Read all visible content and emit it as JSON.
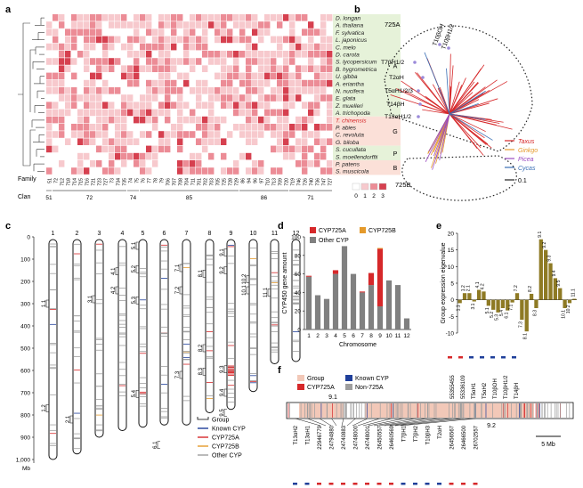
{
  "panel_labels": {
    "a": "a",
    "b": "b",
    "c": "c",
    "d": "d",
    "e": "e",
    "f": "f"
  },
  "heatmap": {
    "species": [
      "D. longan",
      "A. thaliana",
      "F. sylvatica",
      "L. japonicus",
      "C. melo",
      "D. carota",
      "S. lycopersicum",
      "B. hygrometrica",
      "U. gibba",
      "A. eriantha",
      "N. nucifera",
      "E. glata",
      "Z. muelleri",
      "A. trichopoda",
      "T. chinensis",
      "P. abies",
      "C. revoluta",
      "G. biloba",
      "S. cucullata",
      "S. moellendorffii",
      "P. patens",
      "S. muscicola"
    ],
    "highlight_species_index": 14,
    "groups": [
      {
        "label": "A",
        "rows": [
          0,
          13
        ],
        "color": "#e6f2d9"
      },
      {
        "label": "G",
        "rows": [
          14,
          17
        ],
        "color": "#fbe0d8"
      },
      {
        "label": "P",
        "rows": [
          18,
          19
        ],
        "color": "#e6f2d9"
      },
      {
        "label": "B",
        "rows": [
          20,
          21
        ],
        "color": "#fbe0d8"
      }
    ],
    "family_label": "Family",
    "clan_label": "Clan",
    "families": [
      "51",
      "72",
      "712",
      "718",
      "714",
      "715",
      "716",
      "721",
      "723",
      "727",
      "73",
      "734",
      "735",
      "74",
      "75",
      "76",
      "77",
      "78",
      "79",
      "706",
      "707",
      "708",
      "704",
      "711",
      "701",
      "702",
      "703",
      "705",
      "725",
      "728",
      "729",
      "86",
      "94",
      "96",
      "97",
      "710",
      "713",
      "709",
      "720",
      "719",
      "746",
      "726",
      "740",
      "736",
      "747",
      "727"
    ],
    "clans": [
      {
        "label": "51",
        "start": 0,
        "end": 0
      },
      {
        "label": "72",
        "start": 1,
        "end": 12
      },
      {
        "label": "74",
        "start": 13,
        "end": 14
      },
      {
        "label": "85",
        "start": 15,
        "end": 30
      },
      {
        "label": "86",
        "start": 31,
        "end": 38
      },
      {
        "label": "71",
        "start": 39,
        "end": 45
      }
    ],
    "legend_values": [
      "0",
      "1",
      "2",
      "3"
    ],
    "legend_colors": [
      "#ffffff",
      "#f7c9cd",
      "#ec8c96",
      "#d6404f"
    ],
    "fill_seed": 7
  },
  "tree": {
    "labels": [
      "725A",
      "725B"
    ],
    "tips": [
      "T10βOH",
      "T10βH1/2",
      "T7βH1/2",
      "T2αH",
      "T5αH1/2/3",
      "T14βH",
      "T13αH1/2"
    ],
    "legend": [
      {
        "name": "Taxus",
        "color": "#d6282a"
      },
      {
        "name": "Ginkgo",
        "color": "#e59a2b"
      },
      {
        "name": "Picea",
        "color": "#9b4cc0"
      },
      {
        "name": "Cycas",
        "color": "#3a6fb5"
      }
    ],
    "scale": "0.1"
  },
  "chromosomes": {
    "names": [
      "1",
      "2",
      "3",
      "4",
      "5",
      "6",
      "7",
      "8",
      "9",
      "10",
      "11",
      "12"
    ],
    "lengths_mb": [
      1000,
      975,
      900,
      870,
      855,
      845,
      845,
      790,
      775,
      695,
      570,
      560
    ],
    "axis_ticks": [
      "0",
      "100",
      "200",
      "300",
      "400",
      "500",
      "600",
      "700",
      "800",
      "900",
      "1,000"
    ],
    "axis_unit": "Mb",
    "group_labels": [
      {
        "chr": 1,
        "label": "1.1",
        "mb": 300
      },
      {
        "chr": 1,
        "label": "1.2",
        "mb": 770
      },
      {
        "chr": 2,
        "label": "2.1",
        "mb": 820
      },
      {
        "chr": 3,
        "label": "3.1",
        "mb": 280
      },
      {
        "chr": 4,
        "label": "4.1",
        "mb": 155
      },
      {
        "chr": 4,
        "label": "4.2",
        "mb": 240
      },
      {
        "chr": 5,
        "label": "5.1",
        "mb": 40
      },
      {
        "chr": 5,
        "label": "5.2",
        "mb": 145
      },
      {
        "chr": 5,
        "label": "5.3",
        "mb": 285
      },
      {
        "chr": 5,
        "label": "5.4",
        "mb": 705
      },
      {
        "chr": 6,
        "label": "6.1",
        "mb": 935
      },
      {
        "chr": 7,
        "label": "7.1",
        "mb": 140
      },
      {
        "chr": 7,
        "label": "7.2",
        "mb": 240
      },
      {
        "chr": 7,
        "label": "7.3",
        "mb": 620
      },
      {
        "chr": 8,
        "label": "8.1",
        "mb": 165
      },
      {
        "chr": 8,
        "label": "8.2",
        "mb": 500
      },
      {
        "chr": 8,
        "label": "8.3",
        "mb": 605
      },
      {
        "chr": 9,
        "label": "9.1",
        "mb": 70
      },
      {
        "chr": 9,
        "label": "9.2",
        "mb": 150
      },
      {
        "chr": 9,
        "label": "9.3",
        "mb": 595
      },
      {
        "chr": 9,
        "label": "9.4",
        "mb": 700
      },
      {
        "chr": 9,
        "label": "9.5",
        "mb": 790
      },
      {
        "chr": 10,
        "label": "10.1",
        "mb": 240
      },
      {
        "chr": 10,
        "label": "10.2",
        "mb": 190
      },
      {
        "chr": 11,
        "label": "11.1",
        "mb": 250
      }
    ],
    "legend": [
      {
        "name": "Group",
        "color": "#000000",
        "kind": "bracket"
      },
      {
        "name": "Known CYP",
        "color": "#1f3f9a",
        "kind": "line"
      },
      {
        "name": "CYP725A",
        "color": "#d6282a",
        "kind": "line"
      },
      {
        "name": "CYP725B",
        "color": "#e59a2b",
        "kind": "line"
      },
      {
        "name": "Other CYP",
        "color": "#9e9e9e",
        "kind": "line"
      }
    ],
    "seed": 11
  },
  "chart_data": [
    {
      "type": "bar",
      "stacked": true,
      "categories": [
        "1",
        "2",
        "3",
        "4",
        "5",
        "6",
        "7",
        "8",
        "9",
        "10",
        "11",
        "12"
      ],
      "series": [
        {
          "name": "Other CYP",
          "color": "#808080",
          "values": [
            57,
            37,
            33,
            60,
            90,
            60,
            40,
            48,
            25,
            53,
            48,
            12
          ]
        },
        {
          "name": "CYP725A",
          "color": "#d6282a",
          "values": [
            1,
            0,
            0,
            4,
            0,
            0,
            1,
            13,
            62,
            0,
            0,
            0
          ]
        },
        {
          "name": "CYP725B",
          "color": "#e59a2b",
          "values": [
            0,
            0,
            0,
            0,
            0,
            0,
            0,
            0,
            1,
            0,
            0,
            0
          ]
        }
      ],
      "xlabel": "Chromosome",
      "ylabel": "CYP450 gene amount",
      "ylim": [
        0,
        100
      ],
      "yticks": [
        "0",
        "20",
        "40",
        "60",
        "80",
        "100"
      ],
      "legend": [
        "CYP725A",
        "CYP725B",
        "Other CYP"
      ]
    },
    {
      "type": "bar",
      "categories": [
        "1.1",
        "1.2",
        "2.1",
        "3.1",
        "4.1",
        "4.2",
        "5.1",
        "5.2",
        "5.3",
        "5.4",
        "6.1",
        "7.1",
        "7.2",
        "7.3",
        "8.1",
        "8.2",
        "8.3",
        "9.1",
        "9.2",
        "9.3",
        "9.4",
        "9.5",
        "10.1",
        "10.2",
        "11.1"
      ],
      "values": [
        -1.0,
        2.0,
        2.0,
        -0.5,
        3.0,
        2.5,
        -1.8,
        -3.0,
        -3.8,
        -2.5,
        -3.2,
        -0.8,
        2.0,
        -6.0,
        -9.5,
        1.8,
        -2.5,
        18.2,
        15.0,
        11.0,
        6.5,
        3.5,
        -2.5,
        -1.0,
        0.3
      ],
      "xlabel": "",
      "ylabel": "Group expression eigenvalue",
      "ylim": [
        -10,
        20
      ],
      "yticks": [
        "-10",
        "-5",
        "0",
        "5",
        "10",
        "15",
        "20"
      ],
      "color": "#8e7a24"
    }
  ],
  "region": {
    "legend": [
      {
        "name": "Group",
        "color": "#f2c8b8"
      },
      {
        "name": "Known CYP",
        "color": "#1f3f9a"
      },
      {
        "name": "CYP725A",
        "color": "#d6282a"
      },
      {
        "name": "Non-725A",
        "color": "#9e9e9e"
      }
    ],
    "top_labels": [
      "55355455",
      "55336109",
      "T5αH1",
      "T5αH2",
      "T10βOH",
      "T10βH1/2",
      "T14βH"
    ],
    "bottom_labels": [
      "T13αH2",
      "T13αH1",
      "22946779",
      "24794880",
      "24740883",
      "24748000",
      "24748001",
      "26450557",
      "26460569",
      "T7βH1",
      "T7βH2",
      "T10βH3",
      "T2αH",
      "26456567",
      "26466500",
      "26702557"
    ],
    "group_labels": [
      "9.1",
      "9.2"
    ],
    "scale": "5 Mb"
  }
}
